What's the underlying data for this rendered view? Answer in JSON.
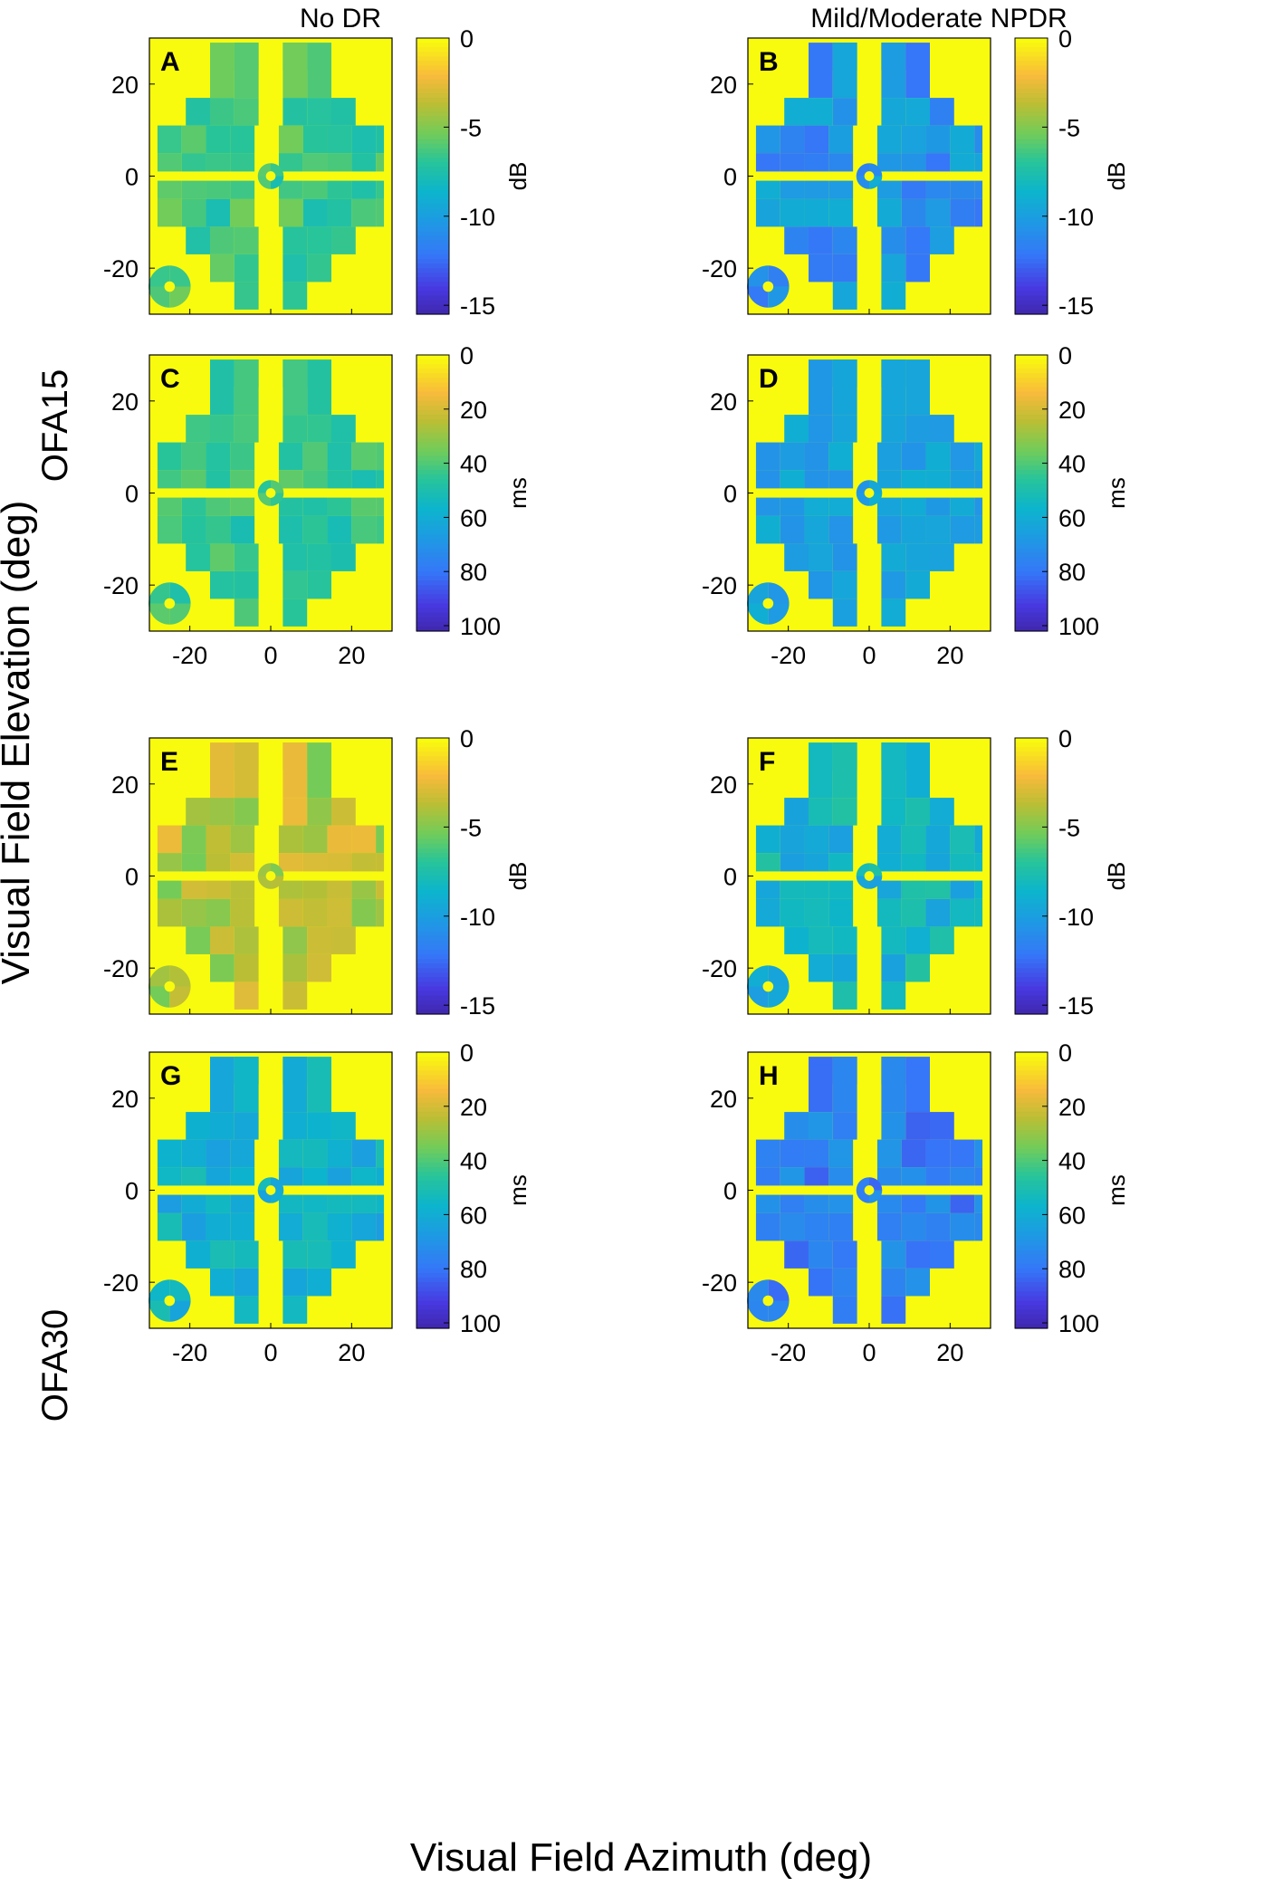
{
  "figure": {
    "column_titles": [
      "No DR",
      "Mild/Moderate NPDR"
    ],
    "row_group_labels": [
      "OFA15",
      "OFA30"
    ],
    "ylabel": "Visual Field Elevation (deg)",
    "xlabel": "Visual Field Azimuth (deg)"
  },
  "chart_data": [
    {
      "type": "heatmap",
      "panel": "A",
      "group": "OFA15",
      "column": "No DR",
      "measure": "amplitude",
      "colorbar_unit": "dB",
      "clim": [
        -15.5,
        0
      ],
      "colorbar_ticks": [
        0,
        -5,
        -10,
        -15
      ],
      "colorbar_tick_labels": [
        "0",
        "-5",
        "-10",
        "-15"
      ],
      "xlim": [
        -30,
        30
      ],
      "ylim": [
        -30,
        30
      ],
      "xticks": [
        -20,
        0,
        20
      ],
      "yticks": [
        20,
        0,
        -20
      ],
      "show_xticklabels": false,
      "base": -6.5,
      "variation": 1.3,
      "colors": {
        "background": "#f9fb0e",
        "frame": "#000000"
      }
    },
    {
      "type": "heatmap",
      "panel": "B",
      "group": "OFA15",
      "column": "Mild/Moderate NPDR",
      "measure": "amplitude",
      "colorbar_unit": "dB",
      "clim": [
        -15.5,
        0
      ],
      "colorbar_ticks": [
        0,
        -5,
        -10,
        -15
      ],
      "colorbar_tick_labels": [
        "0",
        "-5",
        "-10",
        "-15"
      ],
      "xlim": [
        -30,
        30
      ],
      "ylim": [
        -30,
        30
      ],
      "xticks": [
        -20,
        0,
        20
      ],
      "yticks": [
        20,
        0,
        -20
      ],
      "show_xticklabels": false,
      "base": -10.5,
      "variation": 1.6,
      "colors": {
        "background": "#f9fb0e",
        "frame": "#000000"
      }
    },
    {
      "type": "heatmap",
      "panel": "C",
      "group": "OFA15",
      "column": "No DR",
      "measure": "latency",
      "colorbar_unit": "ms",
      "clim": [
        0,
        102
      ],
      "colorbar_ticks": [
        0,
        20,
        40,
        60,
        80,
        100
      ],
      "colorbar_tick_labels": [
        "0",
        "20",
        "40",
        "60",
        "80",
        "100"
      ],
      "xlim": [
        -30,
        30
      ],
      "ylim": [
        -30,
        30
      ],
      "xticks": [
        -20,
        0,
        20
      ],
      "yticks": [
        20,
        0,
        -20
      ],
      "show_xticklabels": true,
      "base": 44,
      "variation": 7,
      "colors": {
        "background": "#f9fb0e",
        "frame": "#000000"
      }
    },
    {
      "type": "heatmap",
      "panel": "D",
      "group": "OFA15",
      "column": "Mild/Moderate NPDR",
      "measure": "latency",
      "colorbar_unit": "ms",
      "clim": [
        0,
        102
      ],
      "colorbar_ticks": [
        0,
        20,
        40,
        60,
        80,
        100
      ],
      "colorbar_tick_labels": [
        "0",
        "20",
        "40",
        "60",
        "80",
        "100"
      ],
      "xlim": [
        -30,
        30
      ],
      "ylim": [
        -30,
        30
      ],
      "xticks": [
        -20,
        0,
        20
      ],
      "yticks": [
        20,
        0,
        -20
      ],
      "show_xticklabels": true,
      "base": 64,
      "variation": 6,
      "colors": {
        "background": "#f9fb0e",
        "frame": "#000000"
      }
    },
    {
      "type": "heatmap",
      "panel": "E",
      "group": "OFA30",
      "column": "No DR",
      "measure": "amplitude",
      "colorbar_unit": "dB",
      "clim": [
        -15.5,
        0
      ],
      "colorbar_ticks": [
        0,
        -5,
        -10,
        -15
      ],
      "colorbar_tick_labels": [
        "0",
        "-5",
        "-10",
        "-15"
      ],
      "xlim": [
        -30,
        30
      ],
      "ylim": [
        -30,
        30
      ],
      "xticks": [
        -20,
        0,
        20
      ],
      "yticks": [
        20,
        0,
        -20
      ],
      "show_xticklabels": false,
      "base": -3.8,
      "variation": 1.5,
      "colors": {
        "background": "#f9fb0e",
        "frame": "#000000"
      }
    },
    {
      "type": "heatmap",
      "panel": "F",
      "group": "OFA30",
      "column": "Mild/Moderate NPDR",
      "measure": "amplitude",
      "colorbar_unit": "dB",
      "clim": [
        -15.5,
        0
      ],
      "colorbar_ticks": [
        0,
        -5,
        -10,
        -15
      ],
      "colorbar_tick_labels": [
        "0",
        "-5",
        "-10",
        "-15"
      ],
      "xlim": [
        -30,
        30
      ],
      "ylim": [
        -30,
        30
      ],
      "xticks": [
        -20,
        0,
        20
      ],
      "yticks": [
        20,
        0,
        -20
      ],
      "show_xticklabels": false,
      "base": -8.5,
      "variation": 1.5,
      "colors": {
        "background": "#f9fb0e",
        "frame": "#000000"
      }
    },
    {
      "type": "heatmap",
      "panel": "G",
      "group": "OFA30",
      "column": "No DR",
      "measure": "latency",
      "colorbar_unit": "ms",
      "clim": [
        0,
        102
      ],
      "colorbar_ticks": [
        0,
        20,
        40,
        60,
        80,
        100
      ],
      "colorbar_tick_labels": [
        "0",
        "20",
        "40",
        "60",
        "80",
        "100"
      ],
      "xlim": [
        -30,
        30
      ],
      "ylim": [
        -30,
        30
      ],
      "xticks": [
        -20,
        0,
        20
      ],
      "yticks": [
        20,
        0,
        -20
      ],
      "show_xticklabels": true,
      "base": 58,
      "variation": 8,
      "colors": {
        "background": "#f9fb0e",
        "frame": "#000000"
      }
    },
    {
      "type": "heatmap",
      "panel": "H",
      "group": "OFA30",
      "column": "Mild/Moderate NPDR",
      "measure": "latency",
      "colorbar_unit": "ms",
      "clim": [
        0,
        102
      ],
      "colorbar_ticks": [
        0,
        20,
        40,
        60,
        80,
        100
      ],
      "colorbar_tick_labels": [
        "0",
        "20",
        "40",
        "60",
        "80",
        "100"
      ],
      "xlim": [
        -30,
        30
      ],
      "ylim": [
        -30,
        30
      ],
      "xticks": [
        -20,
        0,
        20
      ],
      "yticks": [
        20,
        0,
        -20
      ],
      "show_xticklabels": true,
      "base": 76,
      "variation": 8,
      "colors": {
        "background": "#f9fb0e",
        "frame": "#000000"
      }
    }
  ]
}
